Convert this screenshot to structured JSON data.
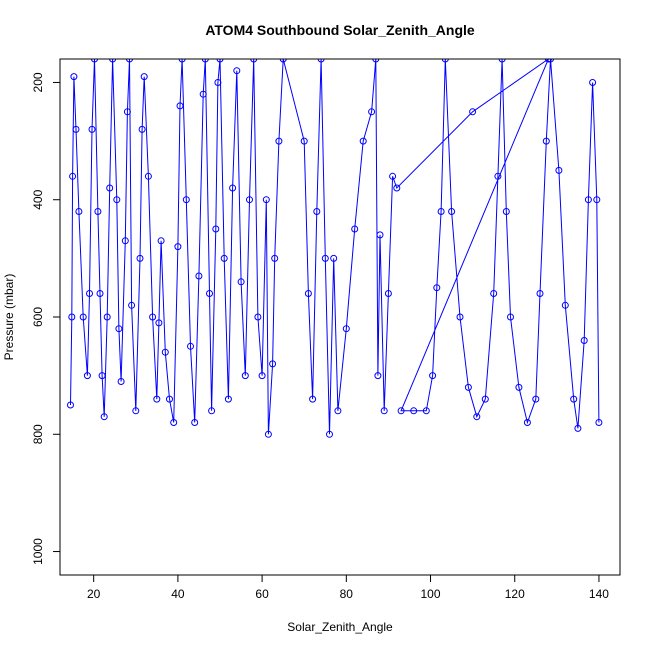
{
  "chart_data": {
    "type": "line",
    "title": "ATOM4 Southbound Solar_Zenith_Angle",
    "xlabel": "Solar_Zenith_Angle",
    "ylabel": "Pressure (mbar)",
    "xlim": [
      12,
      145
    ],
    "ylim": [
      1040,
      160
    ],
    "y_reversed": true,
    "xticks": [
      20,
      40,
      60,
      80,
      100,
      120,
      140
    ],
    "yticks": [
      200,
      400,
      600,
      800,
      1000
    ],
    "color": "#0000ff",
    "markers": "open-circle",
    "series": [
      {
        "values": [
          [
            14.5,
            750
          ],
          [
            14.8,
            600
          ],
          [
            15.0,
            360
          ],
          [
            15.3,
            190
          ],
          [
            15.8,
            280
          ],
          [
            16.5,
            420
          ],
          [
            17.5,
            600
          ],
          [
            18.5,
            700
          ],
          [
            19.0,
            560
          ],
          [
            19.6,
            280
          ],
          [
            20.2,
            160
          ],
          [
            21.0,
            420
          ],
          [
            21.5,
            560
          ],
          [
            22.0,
            700
          ],
          [
            22.5,
            770
          ],
          [
            23.2,
            600
          ],
          [
            23.8,
            380
          ],
          [
            24.5,
            160
          ],
          [
            25.5,
            400
          ],
          [
            26.0,
            620
          ],
          [
            26.5,
            710
          ],
          [
            27.5,
            470
          ],
          [
            28.0,
            250
          ],
          [
            28.5,
            160
          ],
          [
            29.0,
            580
          ],
          [
            30.0,
            760
          ],
          [
            31.0,
            500
          ],
          [
            31.5,
            280
          ],
          [
            32.0,
            190
          ],
          [
            33.0,
            360
          ],
          [
            34.0,
            600
          ],
          [
            35.0,
            740
          ],
          [
            35.5,
            610
          ],
          [
            36.0,
            470
          ],
          [
            37.0,
            660
          ],
          [
            38.0,
            740
          ],
          [
            39.0,
            780
          ],
          [
            40.0,
            480
          ],
          [
            40.5,
            240
          ],
          [
            41.0,
            160
          ],
          [
            42.0,
            400
          ],
          [
            43.0,
            650
          ],
          [
            44.0,
            780
          ],
          [
            45.0,
            530
          ],
          [
            46.0,
            220
          ],
          [
            46.5,
            160
          ],
          [
            47.5,
            560
          ],
          [
            48.0,
            760
          ],
          [
            49.0,
            450
          ],
          [
            49.5,
            200
          ],
          [
            50.0,
            160
          ],
          [
            51.0,
            500
          ],
          [
            52.0,
            740
          ],
          [
            53.0,
            380
          ],
          [
            54.0,
            180
          ],
          [
            55.0,
            540
          ],
          [
            56.0,
            700
          ],
          [
            57.0,
            400
          ],
          [
            58.0,
            160
          ],
          [
            59.0,
            600
          ],
          [
            60.0,
            700
          ],
          [
            61.0,
            400
          ],
          [
            61.5,
            800
          ],
          [
            62.5,
            680
          ],
          [
            63.0,
            500
          ],
          [
            64.0,
            300
          ],
          [
            65.0,
            160
          ],
          [
            70.0,
            300
          ],
          [
            71.0,
            560
          ],
          [
            72.0,
            740
          ],
          [
            73.0,
            420
          ],
          [
            74.0,
            160
          ],
          [
            75.0,
            500
          ],
          [
            76.0,
            800
          ],
          [
            77.0,
            500
          ],
          [
            78.0,
            760
          ],
          [
            80.0,
            620
          ],
          [
            82.0,
            450
          ],
          [
            84.0,
            300
          ],
          [
            86.0,
            250
          ],
          [
            87.0,
            160
          ],
          [
            87.5,
            700
          ],
          [
            88.0,
            460
          ],
          [
            89.0,
            760
          ],
          [
            90.0,
            560
          ],
          [
            91.0,
            360
          ],
          [
            92.0,
            380
          ],
          [
            110.0,
            250
          ],
          [
            128.0,
            160
          ],
          [
            93.0,
            760
          ],
          [
            96.0,
            760
          ],
          [
            99.0,
            760
          ],
          [
            100.5,
            700
          ],
          [
            101.5,
            550
          ],
          [
            102.5,
            420
          ],
          [
            103.5,
            160
          ],
          [
            105.0,
            420
          ],
          [
            107.0,
            600
          ],
          [
            109.0,
            720
          ],
          [
            111.0,
            770
          ],
          [
            113.0,
            740
          ],
          [
            115.0,
            560
          ],
          [
            116.0,
            360
          ],
          [
            117.0,
            160
          ],
          [
            118.0,
            420
          ],
          [
            119.0,
            600
          ],
          [
            121.0,
            720
          ],
          [
            123.0,
            780
          ],
          [
            125.0,
            740
          ],
          [
            126.0,
            560
          ],
          [
            127.5,
            300
          ],
          [
            128.5,
            160
          ],
          [
            130.5,
            350
          ],
          [
            132.0,
            580
          ],
          [
            134.0,
            740
          ],
          [
            135.0,
            790
          ],
          [
            136.5,
            640
          ],
          [
            137.5,
            400
          ],
          [
            138.5,
            200
          ],
          [
            139.5,
            400
          ],
          [
            140.0,
            780
          ]
        ]
      }
    ]
  }
}
